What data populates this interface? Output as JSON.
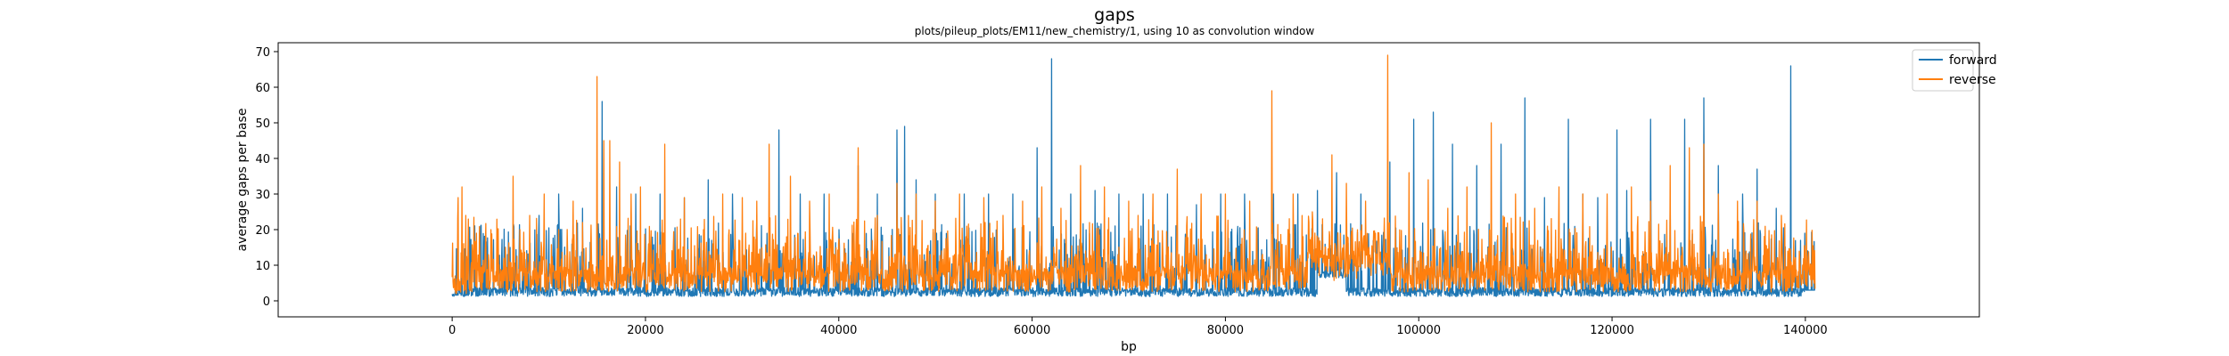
{
  "chart_data": {
    "type": "line",
    "title": "gaps",
    "subtitle": "plots/pileup_plots/EM11/new_chemistry/1, using 10 as convolution window",
    "xlabel": "bp",
    "ylabel": "average gaps per base",
    "xlim": [
      -18000,
      158000
    ],
    "ylim": [
      -4.5,
      72.5
    ],
    "xticks": [
      0,
      20000,
      40000,
      60000,
      80000,
      100000,
      120000,
      140000
    ],
    "yticks": [
      0,
      10,
      20,
      30,
      40,
      50,
      60,
      70
    ],
    "grid": false,
    "legend_position": "top-right",
    "x_extent": [
      0,
      141000
    ],
    "series": [
      {
        "name": "forward",
        "color": "#1f77b4",
        "baseline": 1.5,
        "peaks": [
          [
            2500,
            12
          ],
          [
            6000,
            15
          ],
          [
            9000,
            24
          ],
          [
            11000,
            30
          ],
          [
            13500,
            26
          ],
          [
            15500,
            56
          ],
          [
            17000,
            32
          ],
          [
            19000,
            30
          ],
          [
            21500,
            30
          ],
          [
            24000,
            29
          ],
          [
            26500,
            34
          ],
          [
            29000,
            30
          ],
          [
            31500,
            24
          ],
          [
            33800,
            48
          ],
          [
            36000,
            30
          ],
          [
            38500,
            30
          ],
          [
            40000,
            20
          ],
          [
            42000,
            38
          ],
          [
            44000,
            30
          ],
          [
            46000,
            48
          ],
          [
            46800,
            49
          ],
          [
            48000,
            34
          ],
          [
            50000,
            30
          ],
          [
            53000,
            30
          ],
          [
            55500,
            30
          ],
          [
            58000,
            30
          ],
          [
            60500,
            43
          ],
          [
            62000,
            68
          ],
          [
            64000,
            30
          ],
          [
            66500,
            31
          ],
          [
            69000,
            30
          ],
          [
            71500,
            30
          ],
          [
            74000,
            30
          ],
          [
            77000,
            27
          ],
          [
            79500,
            30
          ],
          [
            82000,
            30
          ],
          [
            85000,
            30
          ],
          [
            87500,
            30
          ],
          [
            89500,
            31
          ],
          [
            91500,
            36
          ],
          [
            94000,
            30
          ],
          [
            97000,
            39
          ],
          [
            99500,
            51
          ],
          [
            101500,
            53
          ],
          [
            103500,
            44
          ],
          [
            106000,
            38
          ],
          [
            108500,
            44
          ],
          [
            111000,
            57
          ],
          [
            113000,
            29
          ],
          [
            115500,
            51
          ],
          [
            117000,
            30
          ],
          [
            118500,
            29
          ],
          [
            120500,
            48
          ],
          [
            121500,
            31
          ],
          [
            124000,
            51
          ],
          [
            126000,
            31
          ],
          [
            127500,
            51
          ],
          [
            129500,
            57
          ],
          [
            131000,
            38
          ],
          [
            133500,
            30
          ],
          [
            135000,
            37
          ],
          [
            137000,
            26
          ],
          [
            138500,
            66
          ],
          [
            139500,
            17
          ]
        ]
      },
      {
        "name": "reverse",
        "color": "#ff7f0e",
        "baseline": 5,
        "peaks": [
          [
            600,
            29
          ],
          [
            1000,
            32
          ],
          [
            1400,
            24
          ],
          [
            2500,
            19
          ],
          [
            4000,
            20
          ],
          [
            5500,
            15
          ],
          [
            6300,
            35
          ],
          [
            7000,
            20
          ],
          [
            8000,
            24
          ],
          [
            9500,
            30
          ],
          [
            11000,
            20
          ],
          [
            12500,
            28
          ],
          [
            13500,
            22
          ],
          [
            15000,
            63
          ],
          [
            15700,
            45
          ],
          [
            16300,
            45
          ],
          [
            17300,
            39
          ],
          [
            18500,
            30
          ],
          [
            19500,
            32
          ],
          [
            22000,
            44
          ],
          [
            24000,
            29
          ],
          [
            26000,
            20
          ],
          [
            28000,
            30
          ],
          [
            30000,
            29
          ],
          [
            31500,
            28
          ],
          [
            32800,
            44
          ],
          [
            35000,
            35
          ],
          [
            37000,
            28
          ],
          [
            39000,
            30
          ],
          [
            42000,
            43
          ],
          [
            44000,
            24
          ],
          [
            46000,
            33
          ],
          [
            48000,
            30
          ],
          [
            50000,
            28
          ],
          [
            52500,
            30
          ],
          [
            55000,
            29
          ],
          [
            57000,
            24
          ],
          [
            59000,
            28
          ],
          [
            61000,
            32
          ],
          [
            63000,
            26
          ],
          [
            65000,
            38
          ],
          [
            67500,
            32
          ],
          [
            70000,
            28
          ],
          [
            72500,
            30
          ],
          [
            75000,
            37
          ],
          [
            77500,
            30
          ],
          [
            80000,
            30
          ],
          [
            82500,
            28
          ],
          [
            84800,
            59
          ],
          [
            87000,
            30
          ],
          [
            89000,
            25
          ],
          [
            91000,
            41
          ],
          [
            92500,
            33
          ],
          [
            94500,
            28
          ],
          [
            96800,
            69
          ],
          [
            99000,
            36
          ],
          [
            101000,
            34
          ],
          [
            103000,
            26
          ],
          [
            105000,
            32
          ],
          [
            107500,
            50
          ],
          [
            110000,
            30
          ],
          [
            112000,
            26
          ],
          [
            114500,
            32
          ],
          [
            117000,
            30
          ],
          [
            119500,
            30
          ],
          [
            122000,
            32
          ],
          [
            124000,
            28
          ],
          [
            126000,
            38
          ],
          [
            128000,
            43
          ],
          [
            129500,
            44
          ],
          [
            131000,
            30
          ],
          [
            133000,
            28
          ],
          [
            135000,
            28
          ],
          [
            137500,
            24
          ]
        ]
      }
    ]
  }
}
